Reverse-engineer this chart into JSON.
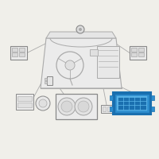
{
  "background_color": "#f0efea",
  "fig_width": 2.0,
  "fig_height": 2.0,
  "dpi": 100,
  "line_color": "#aaaaaa",
  "sketch_color": "#b0b0b0",
  "component_face": "#f0efea",
  "component_edge": "#999999",
  "ac_blue_dark": "#1a6faf",
  "ac_blue_mid": "#2e8ecf",
  "ac_blue_light": "#5ab4e8",
  "ac_blue_inner": "#7ac8ee"
}
